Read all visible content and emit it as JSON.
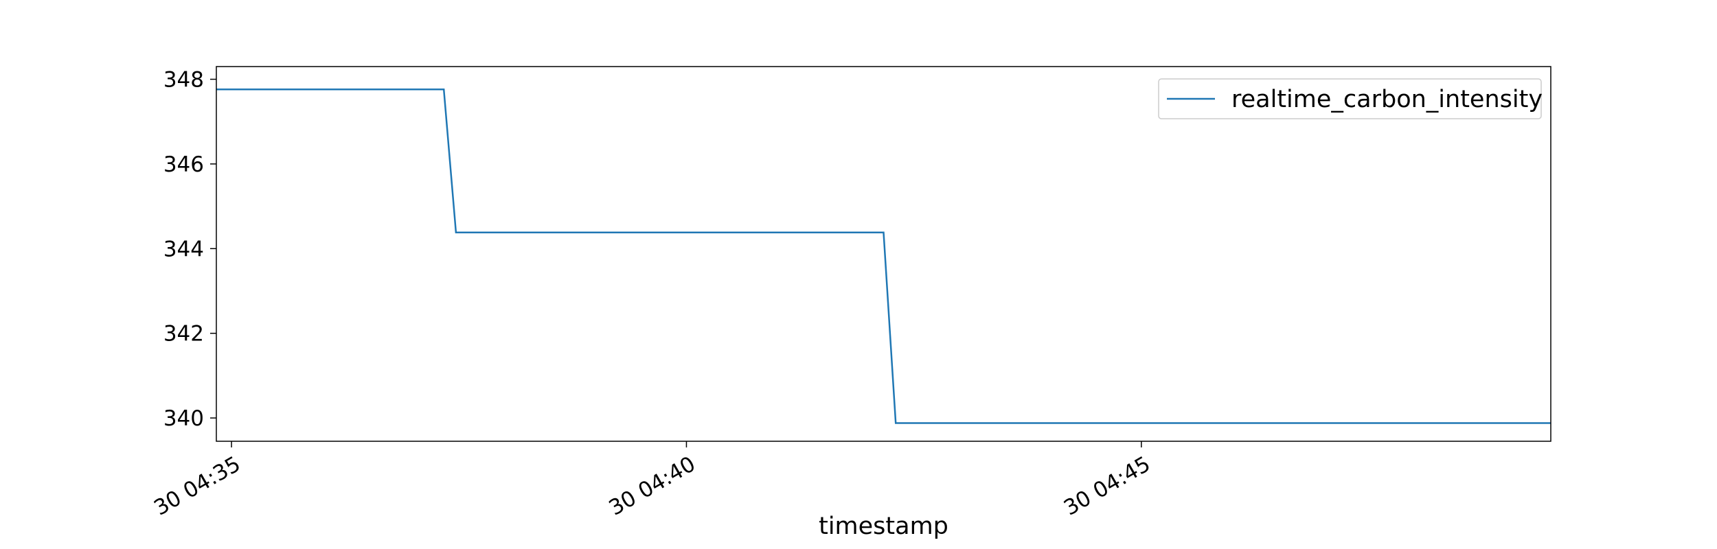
{
  "chart_data": {
    "type": "line",
    "title": "",
    "xlabel": "timestamp",
    "ylabel": "",
    "x_range": [
      "30 04:34:50",
      "30 04:49:30"
    ],
    "ylim": [
      339.45,
      348.3
    ],
    "x_ticks": [
      {
        "time": "30 04:35:00",
        "label": "30 04:35"
      },
      {
        "time": "30 04:40:00",
        "label": "30 04:40"
      },
      {
        "time": "30 04:45:00",
        "label": "30 04:45"
      }
    ],
    "y_ticks": [
      340,
      342,
      344,
      346,
      348
    ],
    "grid": false,
    "legend": {
      "placement": "top-right"
    },
    "series": [
      {
        "name": "realtime_carbon_intensity",
        "color": "#1f77b4",
        "x": [
          "30 04:34:50",
          "30 04:37:20",
          "30 04:37:28",
          "30 04:42:10",
          "30 04:42:18",
          "30 04:49:30"
        ],
        "y": [
          347.76,
          347.76,
          344.38,
          344.38,
          339.88,
          339.88
        ]
      }
    ]
  }
}
